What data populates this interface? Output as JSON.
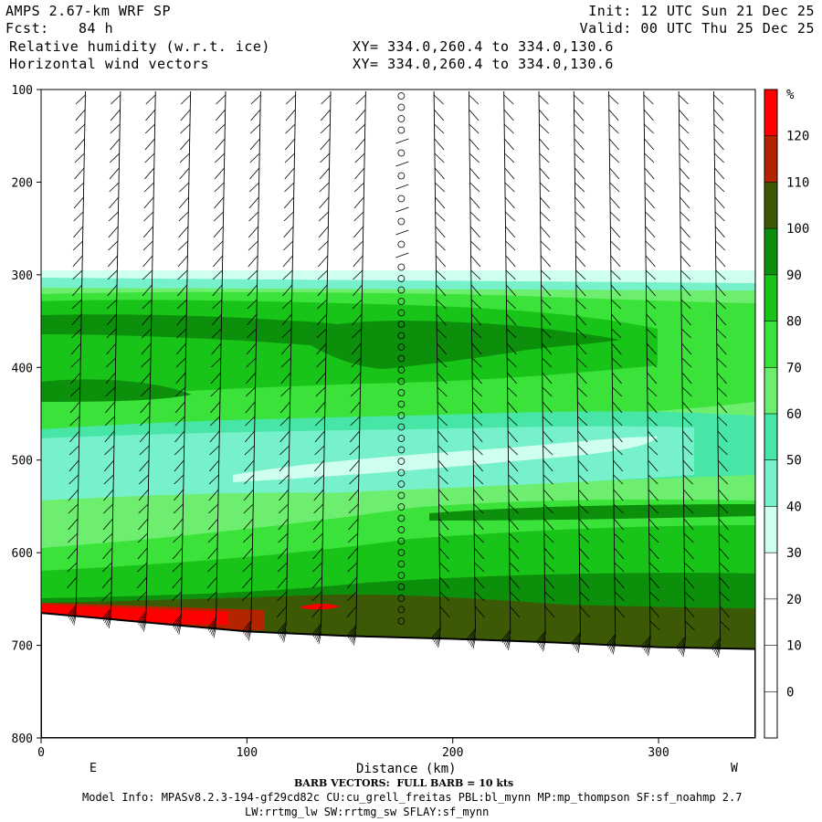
{
  "header": {
    "model": "AMPS 2.67-km WRF SP",
    "init": "Init: 12 UTC Sun 21 Dec 25",
    "fcst_label": "Fcst:",
    "fcst_value": "84 h",
    "valid": "Valid: 00 UTC Thu 25 Dec 25",
    "field1": "Relative humidity (w.r.t. ice)",
    "field2": "Horizontal wind vectors",
    "xy1": "XY= 334.0,260.4 to 334.0,130.6",
    "xy2": "XY= 334.0,260.4 to 334.0,130.6"
  },
  "chart_data": {
    "type": "heatmap",
    "title": "Relative humidity (w.r.t. ice)",
    "xlabel": "Distance (km)",
    "xlim": [
      0,
      347
    ],
    "x_ticks": [
      0,
      100,
      200,
      300
    ],
    "ylim": [
      100,
      800
    ],
    "y_ticks": [
      100,
      200,
      300,
      400,
      500,
      600,
      700,
      800
    ],
    "y_inverted": true,
    "x_end_labels": {
      "left": "E",
      "right": "W"
    },
    "colorbar": {
      "unit": "%",
      "ticks": [
        0,
        10,
        20,
        30,
        40,
        50,
        60,
        70,
        80,
        90,
        100,
        110,
        120
      ],
      "levels": [
        {
          "min": 30,
          "max": 40,
          "color": "#cfffee"
        },
        {
          "min": 40,
          "max": 50,
          "color": "#77f0cc"
        },
        {
          "min": 50,
          "max": 60,
          "color": "#48e6a6"
        },
        {
          "min": 60,
          "max": 70,
          "color": "#6eee6e"
        },
        {
          "min": 70,
          "max": 80,
          "color": "#3ae23a"
        },
        {
          "min": 80,
          "max": 90,
          "color": "#18c418"
        },
        {
          "min": 90,
          "max": 100,
          "color": "#0c900c"
        },
        {
          "min": 100,
          "max": 110,
          "color": "#3c5a06"
        },
        {
          "min": 110,
          "max": 120,
          "color": "#b42400"
        },
        {
          "min": 120,
          "max": 130,
          "color": "#ff0000"
        }
      ]
    },
    "terrain_pressure": [
      [
        0,
        665
      ],
      [
        50,
        675
      ],
      [
        100,
        685
      ],
      [
        150,
        690
      ],
      [
        200,
        693
      ],
      [
        250,
        697
      ],
      [
        300,
        702
      ],
      [
        347,
        704
      ]
    ],
    "humid_top_pressure": 297,
    "barb_x_km": [
      17,
      34,
      51,
      68,
      85,
      102,
      119,
      136,
      153,
      175,
      194,
      211,
      228,
      245,
      262,
      279,
      296,
      313,
      330
    ]
  },
  "footer": {
    "barb_note": "BARB VECTORS:  FULL BARB = 10 kts",
    "model_info": "Model Info: MPASv8.2.3-194-gf29cd82c CU:cu_grell_freitas PBL:bl_mynn MP:mp_thompson SF:sf_noahmp 2.7",
    "model_info2": "LW:rrtmg_lw SW:rrtmg_sw SFLAY:sf_mynn"
  }
}
